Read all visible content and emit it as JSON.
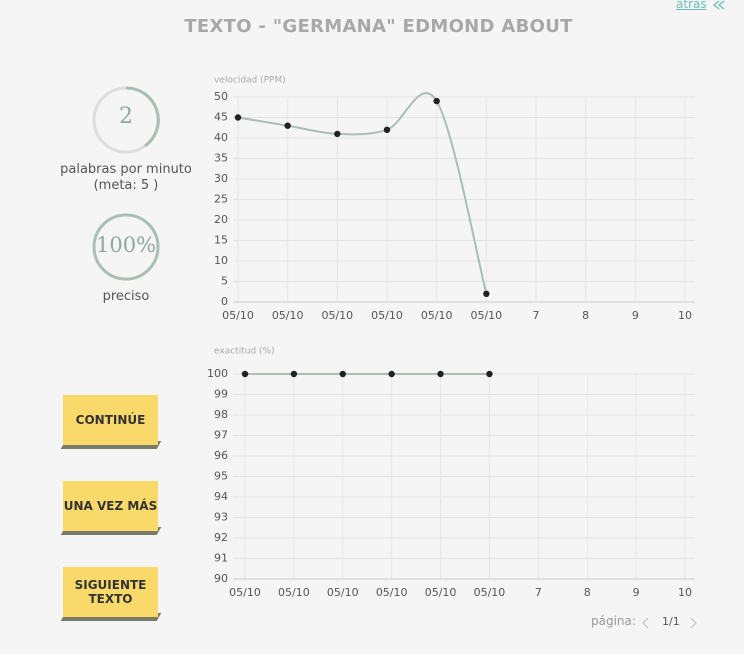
{
  "header": {
    "title": "TEXTO - \"GERMANA\" EDMOND ABOUT",
    "back": "atrás"
  },
  "stats": {
    "speed": "2",
    "speed_label": "palabras por minuto",
    "goal": "(meta: 5 )",
    "accuracy": "100%",
    "accuracy_label": "preciso"
  },
  "buttons": [
    "CONTINÚE",
    "UNA VEZ MÁS",
    "SIGUIENTE TEXTO"
  ],
  "pagination": {
    "label": "página:",
    "page": "1/1"
  },
  "chart_data": [
    {
      "type": "line",
      "y_label": "velocidad (PPM)",
      "categories": [
        "05/10",
        "05/10",
        "05/10",
        "05/10",
        "05/10",
        "05/10",
        "7",
        "8",
        "9",
        "10"
      ],
      "values": [
        45,
        43,
        41,
        42,
        49,
        2,
        null,
        null,
        null,
        null
      ],
      "color": "#a9bfb4",
      "ylim": [
        0,
        50
      ],
      "yticks": [
        0,
        5,
        10,
        15,
        20,
        25,
        30,
        35,
        40,
        45,
        50
      ],
      "grid": true,
      "smooth": true
    },
    {
      "type": "line",
      "y_label": "exactitud (%)",
      "categories": [
        "05/10",
        "05/10",
        "05/10",
        "05/10",
        "05/10",
        "05/10",
        "7",
        "8",
        "9",
        "10"
      ],
      "values": [
        100,
        100,
        100,
        100,
        100,
        100,
        null,
        null,
        null,
        null
      ],
      "color": "#a9bfb4",
      "ylim": [
        90,
        100
      ],
      "yticks": [
        90,
        91,
        92,
        93,
        94,
        95,
        96,
        97,
        98,
        99,
        100
      ],
      "grid": true,
      "smooth": true
    }
  ]
}
